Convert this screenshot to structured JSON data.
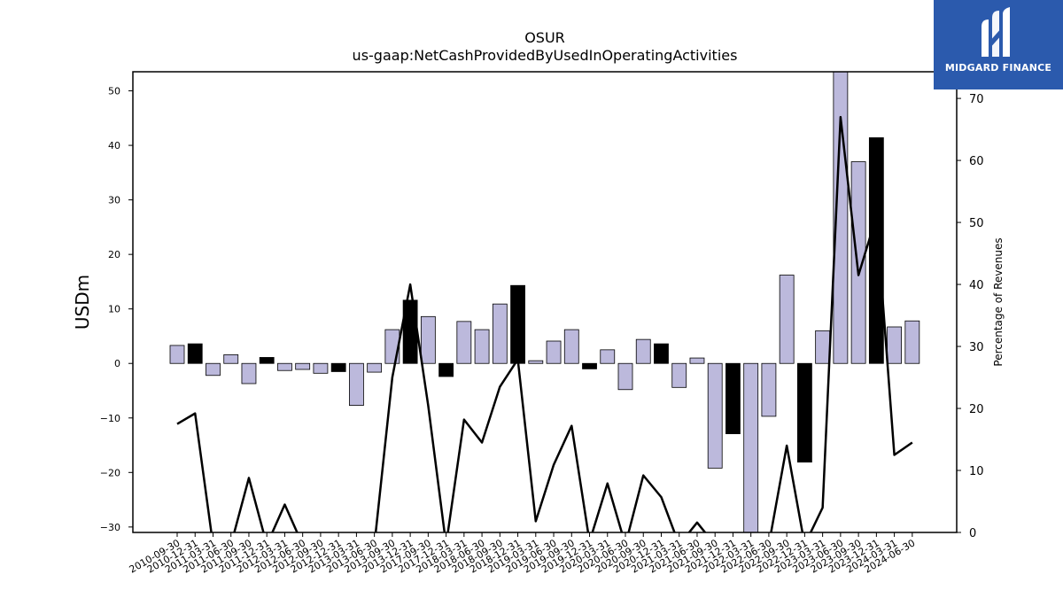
{
  "chart_data": {
    "type": "bar",
    "title": "OSUR",
    "subtitle": "us-gaap:NetCashProvidedByUsedInOperatingActivities",
    "ylabel": "USDm",
    "y2label": "Percentage of Revenues",
    "ylim": [
      -31,
      53.5
    ],
    "y2lim": [
      0,
      74.3
    ],
    "yticks": [
      -30,
      -20,
      -10,
      0,
      10,
      20,
      30,
      40,
      50
    ],
    "y2ticks": [
      0,
      10,
      20,
      30,
      40,
      50,
      60,
      70
    ],
    "categories": [
      "2010-09-30",
      "2010-12-31",
      "2011-03-31",
      "2011-06-30",
      "2011-09-30",
      "2011-12-31",
      "2012-03-31",
      "2012-06-30",
      "2012-09-30",
      "2012-12-31",
      "2013-03-31",
      "2013-06-30",
      "2013-09-30",
      "2013-12-31",
      "2017-09-30",
      "2017-12-31",
      "2018-03-31",
      "2018-06-30",
      "2018-09-30",
      "2018-12-31",
      "2019-03-31",
      "2019-06-30",
      "2019-09-30",
      "2019-12-31",
      "2020-03-31",
      "2020-06-30",
      "2020-09-30",
      "2020-12-31",
      "2021-03-31",
      "2021-06-30",
      "2021-09-30",
      "2021-12-31",
      "2022-03-31",
      "2022-06-30",
      "2022-09-30",
      "2022-12-31",
      "2023-03-31",
      "2023-06-30",
      "2023-09-30",
      "2023-12-31",
      "2024-03-31",
      "2024-06-30"
    ],
    "series": [
      {
        "values": [
          3.3,
          3.6,
          -2.2,
          1.6,
          -3.7,
          1.1,
          -1.3,
          -1.1,
          -1.8,
          -1.5,
          -7.7,
          -1.6,
          6.2,
          11.6,
          8.6,
          -2.4,
          7.7,
          6.2,
          10.9,
          14.3,
          0.5,
          4.1,
          6.2,
          -1.0,
          2.5,
          -4.8,
          4.4,
          3.6,
          -4.4,
          1.0,
          -19.2,
          -12.9,
          -31.0,
          -9.7,
          16.2,
          -18.1,
          6.0,
          53.5,
          37.0,
          41.4,
          6.7,
          7.8
        ],
        "highlight": [
          false,
          true,
          false,
          false,
          false,
          true,
          false,
          false,
          false,
          true,
          false,
          false,
          false,
          true,
          false,
          true,
          false,
          false,
          false,
          true,
          false,
          false,
          false,
          true,
          false,
          false,
          false,
          true,
          false,
          false,
          false,
          true,
          false,
          false,
          false,
          true,
          false,
          false,
          false,
          true,
          false,
          false
        ]
      },
      {
        "axis": "right",
        "type": "line",
        "values": [
          17.5,
          19.2,
          -2,
          -2,
          8.8,
          -2,
          4.5,
          -2,
          -2,
          -2,
          -2,
          -2,
          25.0,
          40.0,
          20.5,
          -2,
          18.2,
          14.5,
          23.5,
          27.9,
          1.8,
          10.9,
          17.2,
          -1.5,
          7.9,
          -2,
          9.2,
          5.7,
          -2,
          1.6,
          -2,
          -2,
          -2,
          -2,
          14.0,
          -2,
          4.0,
          67.0,
          41.5,
          51.0,
          12.5,
          14.5
        ]
      }
    ],
    "colors": {
      "bar_fill": "#bcb9dc",
      "bar_highlight": "#000000",
      "bar_edge": "#000000",
      "line": "#000000"
    }
  },
  "logo": {
    "text": "MIDGARD FINANCE",
    "background": "#2b5aad",
    "icon": "midgard-logo-icon"
  }
}
